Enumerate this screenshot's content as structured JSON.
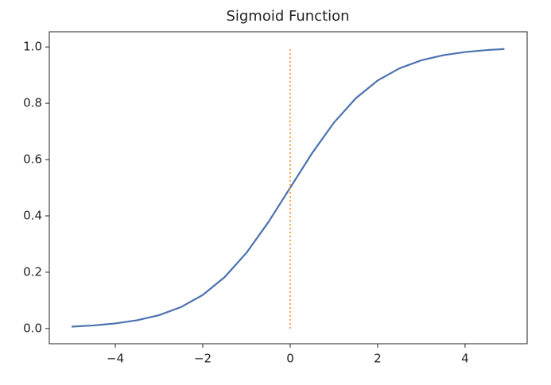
{
  "chart_data": {
    "type": "line",
    "title": "Sigmoid Function",
    "series": [
      {
        "color": "#4c72b0",
        "style": "solid",
        "x": [
          -5,
          -4.5,
          -4,
          -3.5,
          -3,
          -2.5,
          -2,
          -1.5,
          -1,
          -0.5,
          0,
          0.5,
          1,
          1.5,
          2,
          2.5,
          3,
          3.5,
          4,
          4.5,
          4.9
        ],
        "values": [
          0.0067,
          0.011,
          0.018,
          0.0293,
          0.0474,
          0.0759,
          0.1192,
          0.1824,
          0.2689,
          0.3775,
          0.5,
          0.6225,
          0.7311,
          0.8176,
          0.8808,
          0.9241,
          0.9526,
          0.9707,
          0.982,
          0.989,
          0.9926
        ]
      },
      {
        "color": "#ff9f40",
        "style": "dotted",
        "x": [
          0,
          0
        ],
        "values": [
          0,
          1
        ]
      }
    ],
    "xlim": [
      -5.51,
      5.42
    ],
    "ylim": [
      -0.054,
      1.054
    ],
    "xticks": [
      {
        "value": -4,
        "label": "−4"
      },
      {
        "value": -2,
        "label": "−2"
      },
      0,
      2,
      4
    ],
    "yticks": [
      {
        "value": 0,
        "label": "0.0"
      },
      0.2,
      0.4,
      0.6,
      0.8,
      {
        "value": 1,
        "label": "1.0"
      }
    ],
    "grid": false
  }
}
